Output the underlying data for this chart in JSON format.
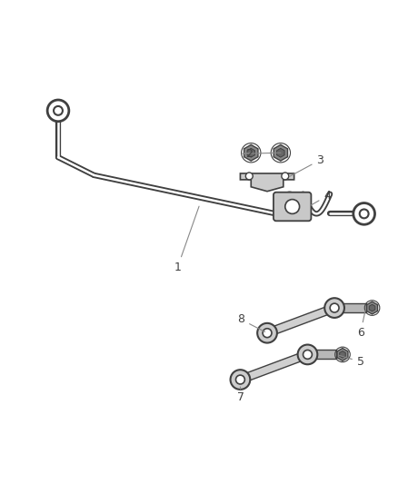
{
  "bg_color": "#ffffff",
  "line_color": "#404040",
  "label_color": "#404040",
  "leader_color": "#888888",
  "lw_bar": 3.5,
  "fig_w": 4.38,
  "fig_h": 5.33,
  "dpi": 100
}
